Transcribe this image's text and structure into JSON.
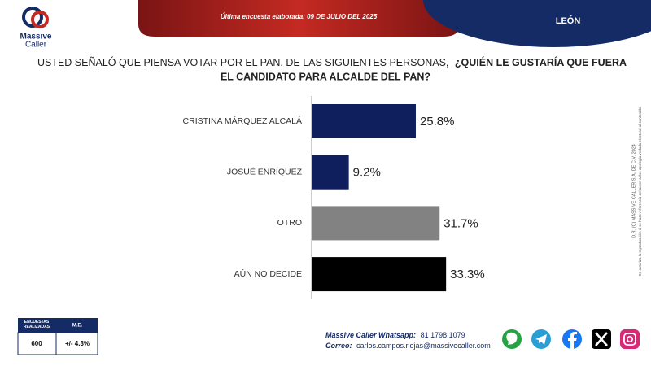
{
  "brand": {
    "line1": "Massive",
    "line2": "Caller"
  },
  "header": {
    "survey_date": "Última encuesta elaborada: 09 DE JULIO DEL 2025",
    "region": "LEÓN"
  },
  "chart_data": {
    "type": "hbar",
    "title_parts": [
      "USTED SEÑALÓ QUE PIENSA VOTAR POR EL PAN. DE LAS SIGUIENTES PERSONAS,",
      "¿QUIÉN LE GUSTARÍA QUE FUERA",
      "EL CANDIDATO PARA ALCALDE DEL PAN?"
    ],
    "categories": [
      "CRISTINA MÁRQUEZ ALCALÁ",
      "JOSUÉ ENRÍQUEZ",
      "OTRO",
      "AÚN NO DECIDE"
    ],
    "values": [
      25.8,
      9.2,
      31.7,
      33.3
    ],
    "value_labels": [
      "25.8%",
      "9.2%",
      "31.7%",
      "33.3%"
    ],
    "colors": [
      "#0f1f5e",
      "#0f1f5e",
      "#828282",
      "#000000"
    ]
  },
  "side_note": {
    "line1": "D.R. (C) MASSIVE CALLER S.A. DE C.V. 2024",
    "line2": "Se autoriza la reproducción si se hace referencia del autor, salvo apología vedada electoral al contenido."
  },
  "table": {
    "headers": [
      "ENCUESTAS REALIZADAS",
      "M.E."
    ],
    "rows": [
      [
        "600",
        "+/- 4.3%"
      ]
    ]
  },
  "footer": {
    "whatsapp_label": "Massive Caller Whatsapp:",
    "whatsapp": "81 1798 1079",
    "email_label": "Correo:",
    "email": "carlos.campos.riojas@massivecaller.com"
  }
}
